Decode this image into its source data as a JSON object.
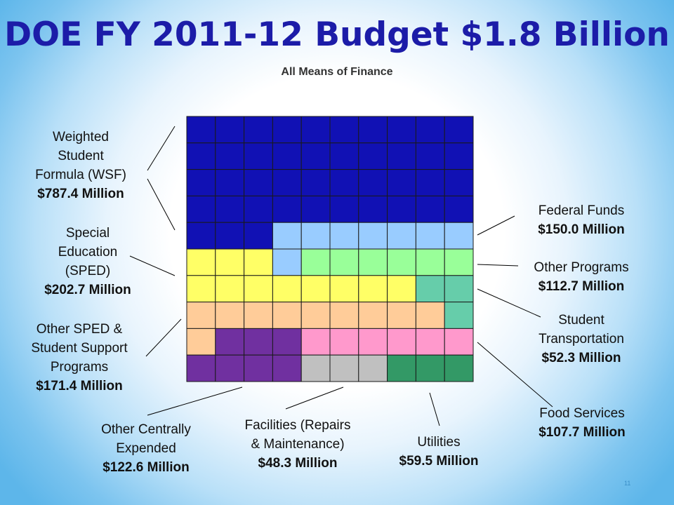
{
  "title": "DOE FY 2011-12 Budget $1.8 Billion",
  "subtitle": "All Means of Finance",
  "page_number": "11",
  "chart_data": {
    "type": "waffle",
    "grid": {
      "rows": 10,
      "cols": 10
    },
    "total": "$1.8 Billion",
    "categories": [
      {
        "key": "wsf",
        "name_lines": [
          "Weighted",
          "Student",
          "Formula (WSF)"
        ],
        "amount": "$787.4 Million",
        "value": 787.4,
        "cells": 43,
        "color": "#1111b4"
      },
      {
        "key": "fed",
        "name_lines": [
          "Federal Funds"
        ],
        "amount": "$150.0 Million",
        "value": 150.0,
        "cells": 8,
        "color": "#99ccff"
      },
      {
        "key": "sped",
        "name_lines": [
          "Special",
          "Education",
          "(SPED)"
        ],
        "amount": "$202.7 Million",
        "value": 202.7,
        "cells": 11,
        "color": "#ffff66"
      },
      {
        "key": "other",
        "name_lines": [
          "Other Programs"
        ],
        "amount": "$112.7 Million",
        "value": 112.7,
        "cells": 6,
        "color": "#99ff99"
      },
      {
        "key": "trans",
        "name_lines": [
          "Student",
          "Transportation"
        ],
        "amount": "$52.3 Million",
        "value": 52.3,
        "cells": 3,
        "color": "#66cdaa"
      },
      {
        "key": "osped",
        "name_lines": [
          "Other SPED &",
          "Student Support",
          "Programs"
        ],
        "amount": "$171.4 Million",
        "value": 171.4,
        "cells": 10,
        "color": "#ffcc99"
      },
      {
        "key": "food",
        "name_lines": [
          "Food Services"
        ],
        "amount": "$107.7 Million",
        "value": 107.7,
        "cells": 6,
        "color": "#ff99cc"
      },
      {
        "key": "ocent",
        "name_lines": [
          "Other Centrally",
          "Expended"
        ],
        "amount": "$122.6 Million",
        "value": 122.6,
        "cells": 7,
        "color": "#7030a0"
      },
      {
        "key": "fac",
        "name_lines": [
          "Facilities (Repairs",
          "& Maintenance)"
        ],
        "amount": "$48.3 Million",
        "value": 48.3,
        "cells": 3,
        "color": "#c0c0c0"
      },
      {
        "key": "util",
        "name_lines": [
          "Utilities"
        ],
        "amount": "$59.5 Million",
        "value": 59.5,
        "cells": 3,
        "color": "#339966"
      }
    ],
    "cell_map": [
      [
        "wsf",
        "wsf",
        "wsf",
        "wsf",
        "wsf",
        "wsf",
        "wsf",
        "wsf",
        "wsf",
        "wsf"
      ],
      [
        "wsf",
        "wsf",
        "wsf",
        "wsf",
        "wsf",
        "wsf",
        "wsf",
        "wsf",
        "wsf",
        "wsf"
      ],
      [
        "wsf",
        "wsf",
        "wsf",
        "wsf",
        "wsf",
        "wsf",
        "wsf",
        "wsf",
        "wsf",
        "wsf"
      ],
      [
        "wsf",
        "wsf",
        "wsf",
        "wsf",
        "wsf",
        "wsf",
        "wsf",
        "wsf",
        "wsf",
        "wsf"
      ],
      [
        "wsf",
        "wsf",
        "wsf",
        "fed",
        "fed",
        "fed",
        "fed",
        "fed",
        "fed",
        "fed"
      ],
      [
        "sped",
        "sped",
        "sped",
        "fed",
        "other",
        "other",
        "other",
        "other",
        "other",
        "other"
      ],
      [
        "sped",
        "sped",
        "sped",
        "sped",
        "sped",
        "sped",
        "sped",
        "sped",
        "trans",
        "trans"
      ],
      [
        "osped",
        "osped",
        "osped",
        "osped",
        "osped",
        "osped",
        "osped",
        "osped",
        "osped",
        "trans"
      ],
      [
        "osped",
        "ocent",
        "ocent",
        "ocent",
        "food",
        "food",
        "food",
        "food",
        "food",
        "food"
      ],
      [
        "ocent",
        "ocent",
        "ocent",
        "ocent",
        "fac",
        "fac",
        "fac",
        "util",
        "util",
        "util"
      ]
    ]
  }
}
